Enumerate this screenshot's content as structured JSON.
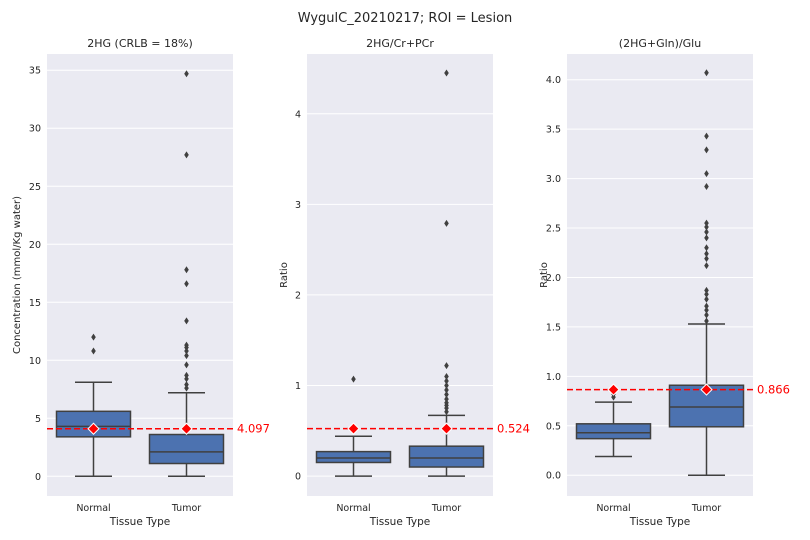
{
  "suptitle": "WygulC_20210217; ROI = Lesion",
  "colors": {
    "box": "#4c72b0",
    "line": "#404040",
    "reference": "#ff0000",
    "plot_bg": "#eaeaf2",
    "grid": "#ffffff"
  },
  "chart_data": [
    {
      "type": "box",
      "title": "2HG (CRLB = 18%)",
      "xlabel": "Tissue Type",
      "ylabel": "Concentration (mmol/Kg water)",
      "ylim": [
        -1.7,
        36.4
      ],
      "yticks": [
        0,
        5,
        10,
        15,
        20,
        25,
        30,
        35
      ],
      "ytick_labels": [
        "0",
        "5",
        "10",
        "15",
        "20",
        "25",
        "30",
        "35"
      ],
      "categories": [
        "Normal",
        "Tumor"
      ],
      "boxes": [
        {
          "whisker_low": 0.0,
          "q1": 3.4,
          "median": 4.3,
          "q3": 5.6,
          "whisker_high": 8.1,
          "mean": 4.097,
          "outliers": [
            10.8,
            12.0
          ]
        },
        {
          "whisker_low": 0.0,
          "q1": 1.1,
          "median": 2.1,
          "q3": 3.6,
          "whisker_high": 7.2,
          "mean": 4.097,
          "outliers": [
            7.6,
            7.9,
            8.4,
            8.7,
            9.6,
            10.4,
            10.8,
            11.1,
            11.3,
            13.4,
            16.6,
            17.8,
            27.7,
            34.7
          ]
        }
      ],
      "reference_value": 4.097,
      "reference_label": "4.097"
    },
    {
      "type": "box",
      "title": "2HG/Cr+PCr",
      "xlabel": "Tissue Type",
      "ylabel": "Ratio",
      "ylim": [
        -0.22,
        4.66
      ],
      "yticks": [
        0,
        1,
        2,
        3,
        4
      ],
      "ytick_labels": [
        "0",
        "1",
        "2",
        "3",
        "4"
      ],
      "categories": [
        "Normal",
        "Tumor"
      ],
      "boxes": [
        {
          "whisker_low": 0.0,
          "q1": 0.15,
          "median": 0.2,
          "q3": 0.27,
          "whisker_high": 0.44,
          "mean": 0.524,
          "outliers": [
            1.07
          ]
        },
        {
          "whisker_low": 0.0,
          "q1": 0.1,
          "median": 0.2,
          "q3": 0.33,
          "whisker_high": 0.67,
          "outliers": [
            0.71,
            0.75,
            0.78,
            0.81,
            0.85,
            0.9,
            0.95,
            1.0,
            1.05,
            1.1,
            1.22,
            2.79,
            4.45
          ],
          "mean": 0.524
        }
      ],
      "reference_value": 0.524,
      "reference_label": "0.524"
    },
    {
      "type": "box",
      "title": "(2HG+Gln)/Glu",
      "xlabel": "Tissue Type",
      "ylabel": "Ratio",
      "ylim": [
        -0.21,
        4.26
      ],
      "yticks": [
        0.0,
        0.5,
        1.0,
        1.5,
        2.0,
        2.5,
        3.0,
        3.5,
        4.0
      ],
      "ytick_labels": [
        "0.0",
        "0.5",
        "1.0",
        "1.5",
        "2.0",
        "2.5",
        "3.0",
        "3.5",
        "4.0"
      ],
      "categories": [
        "Normal",
        "Tumor"
      ],
      "boxes": [
        {
          "whisker_low": 0.19,
          "q1": 0.37,
          "median": 0.43,
          "q3": 0.52,
          "whisker_high": 0.74,
          "mean": 0.866,
          "outliers": [
            0.79,
            0.82
          ]
        },
        {
          "whisker_low": 0.0,
          "q1": 0.49,
          "median": 0.69,
          "q3": 0.91,
          "whisker_high": 1.53,
          "outliers": [
            1.56,
            1.62,
            1.67,
            1.71,
            1.78,
            1.83,
            1.87,
            2.12,
            2.19,
            2.24,
            2.3,
            2.4,
            2.46,
            2.51,
            2.55,
            2.92,
            3.05,
            3.29,
            3.43,
            4.07
          ],
          "mean": 0.866
        }
      ],
      "reference_value": 0.866,
      "reference_label": "0.866"
    }
  ]
}
